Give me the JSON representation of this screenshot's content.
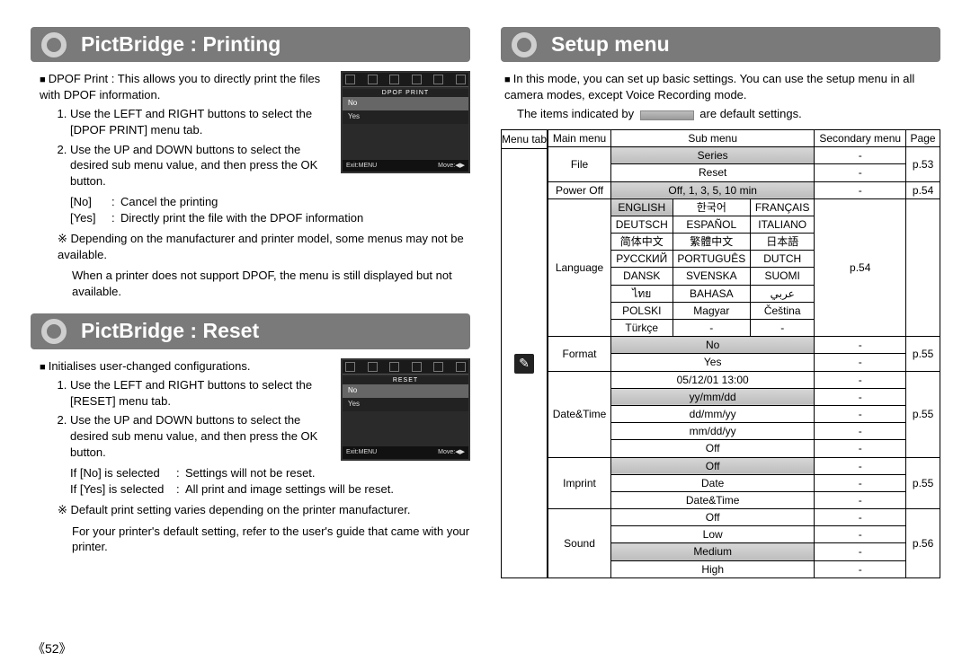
{
  "pageNumber": "《52》",
  "left": {
    "sections": [
      {
        "title": "PictBridge : Printing",
        "screenshot": {
          "label": "DPOF PRINT",
          "rows": [
            "No",
            "Yes"
          ],
          "selected": 0,
          "bottomLeft": "Exit:MENU",
          "bottomRight": "Move:◀▶"
        },
        "intro": "DPOF Print : This allows you to directly print the files with DPOF information.",
        "steps": [
          "Use the LEFT and RIGHT buttons to select the [DPOF PRINT] menu tab.",
          "Use the UP and DOWN buttons to select the desired sub menu value, and then press the OK button."
        ],
        "options": [
          {
            "k": "[No]",
            "v": "Cancel the printing"
          },
          {
            "k": "[Yes]",
            "v": "Directly print the file with the DPOF information"
          }
        ],
        "notes": [
          "Depending on the manufacturer and printer model, some menus may not be available.",
          "When a printer does not support DPOF, the menu is still displayed but not available."
        ]
      },
      {
        "title": "PictBridge : Reset",
        "screenshot": {
          "label": "RESET",
          "rows": [
            "No",
            "Yes"
          ],
          "selected": 0,
          "bottomLeft": "Exit:MENU",
          "bottomRight": "Move:◀▶"
        },
        "intro": "Initialises user-changed configurations.",
        "steps": [
          "Use the LEFT and RIGHT buttons to select the [RESET] menu tab.",
          "Use the UP and DOWN buttons to select the desired sub menu value, and then press the OK button."
        ],
        "options": [
          {
            "k": "If [No] is selected",
            "v": "Settings will not be reset."
          },
          {
            "k": "If [Yes] is selected",
            "v": "All print and image settings will be reset."
          }
        ],
        "notes": [
          "Default print setting varies depending on the printer manufacturer.",
          "For your printer's default setting, refer to the user's guide that came with your printer."
        ]
      }
    ]
  },
  "right": {
    "title": "Setup menu",
    "intro1": "In this mode, you can set up basic settings. You can use the setup menu in all camera modes, except Voice Recording mode.",
    "intro2a": "The items indicated by ",
    "intro2b": " are default settings.",
    "headers": {
      "menuTab": "Menu tab",
      "mainMenu": "Main menu",
      "subMenu": "Sub menu",
      "secondaryMenu": "Secondary menu",
      "page": "Page"
    },
    "rows": [
      {
        "main": "File",
        "mainRowspan": 2,
        "sub": "Series",
        "subColspan": 3,
        "subShaded": true,
        "sec": "-",
        "secHidden": true,
        "page": "p.53",
        "pageRowspan": 2
      },
      {
        "sub": "Reset",
        "subColspan": 3,
        "sec": "-",
        "secHidden": true
      },
      {
        "main": "Power Off",
        "sub": "Off, 1, 3, 5, 10 min",
        "subShaded": true,
        "subColspan": 3,
        "sec": "-",
        "page": "p.54"
      },
      {
        "main": "Language",
        "mainRowspan": 8,
        "tri": [
          "ENGLISH",
          "한국어",
          "FRANÇAIS"
        ],
        "triShaded": 0,
        "page": "p.54",
        "pageRowspan": 8
      },
      {
        "tri": [
          "DEUTSCH",
          "ESPAÑOL",
          "ITALIANO"
        ]
      },
      {
        "tri": [
          "简体中文",
          "繁體中文",
          "日本語"
        ]
      },
      {
        "tri": [
          "РУССКИЙ",
          "PORTUGUÊS",
          "DUTCH"
        ]
      },
      {
        "tri": [
          "DANSK",
          "SVENSKA",
          "SUOMI"
        ]
      },
      {
        "tri": [
          "ไทย",
          "BAHASA",
          "عربي"
        ]
      },
      {
        "tri": [
          "POLSKI",
          "Magyar",
          "Čeština"
        ]
      },
      {
        "tri": [
          "Türkçe",
          "-",
          "-"
        ]
      },
      {
        "main": "Format",
        "mainRowspan": 2,
        "sub": "No",
        "subShaded": true,
        "subColspan": 3,
        "sec": "-",
        "page": "p.55",
        "pageRowspan": 2
      },
      {
        "sub": "Yes",
        "subColspan": 3,
        "sec": "-"
      },
      {
        "main": "Date&Time",
        "mainRowspan": 5,
        "sub": "05/12/01 13:00",
        "subColspan": 3,
        "sec": "-",
        "page": "p.55",
        "pageRowspan": 5
      },
      {
        "sub": "yy/mm/dd",
        "subShaded": true,
        "subColspan": 3,
        "sec": "-"
      },
      {
        "sub": "dd/mm/yy",
        "subColspan": 3,
        "sec": "-"
      },
      {
        "sub": "mm/dd/yy",
        "subColspan": 3,
        "sec": "-"
      },
      {
        "sub": "Off",
        "subColspan": 3,
        "sec": "-"
      },
      {
        "main": "Imprint",
        "mainRowspan": 3,
        "sub": "Off",
        "subShaded": true,
        "subColspan": 3,
        "sec": "-",
        "page": "p.55",
        "pageRowspan": 3
      },
      {
        "sub": "Date",
        "subColspan": 3,
        "sec": "-"
      },
      {
        "sub": "Date&Time",
        "subColspan": 3,
        "sec": "-"
      },
      {
        "main": "Sound",
        "mainRowspan": 4,
        "sub": "Off",
        "subColspan": 3,
        "sec": "-",
        "page": "p.56",
        "pageRowspan": 4
      },
      {
        "sub": "Low",
        "subColspan": 3,
        "sec": "-"
      },
      {
        "sub": "Medium",
        "subShaded": true,
        "subColspan": 3,
        "sec": "-"
      },
      {
        "sub": "High",
        "subColspan": 3,
        "sec": "-"
      }
    ]
  }
}
